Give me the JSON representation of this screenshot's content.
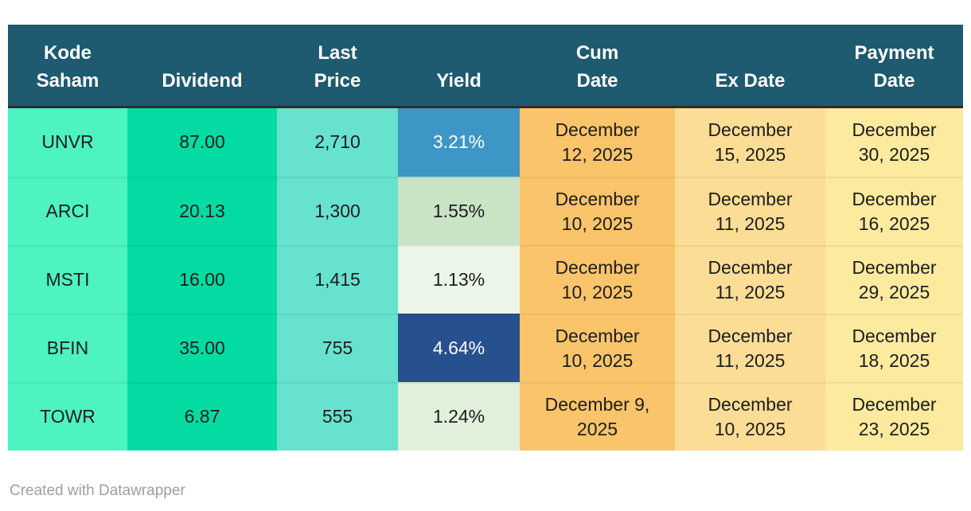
{
  "chart_data": {
    "type": "table",
    "columns": [
      {
        "key": "kode",
        "label": "Kode\nSaham"
      },
      {
        "key": "dividend",
        "label": "Dividend"
      },
      {
        "key": "last_price",
        "label": "Last\nPrice"
      },
      {
        "key": "yield",
        "label": "Yield"
      },
      {
        "key": "cum_date",
        "label": "Cum\nDate"
      },
      {
        "key": "ex_date",
        "label": "Ex Date"
      },
      {
        "key": "payment_date",
        "label": "Payment\nDate"
      }
    ],
    "rows": [
      {
        "kode": "UNVR",
        "dividend": "87.00",
        "last_price": "2,710",
        "yield": "3.21%",
        "cum_date": "December 12, 2025",
        "ex_date": "December 15, 2025",
        "payment_date": "December 30, 2025"
      },
      {
        "kode": "ARCI",
        "dividend": "20.13",
        "last_price": "1,300",
        "yield": "1.55%",
        "cum_date": "December 10, 2025",
        "ex_date": "December 11, 2025",
        "payment_date": "December 16, 2025"
      },
      {
        "kode": "MSTI",
        "dividend": "16.00",
        "last_price": "1,415",
        "yield": "1.13%",
        "cum_date": "December 10, 2025",
        "ex_date": "December 11, 2025",
        "payment_date": "December 29, 2025"
      },
      {
        "kode": "BFIN",
        "dividend": "35.00",
        "last_price": "755",
        "yield": "4.64%",
        "cum_date": "December 10, 2025",
        "ex_date": "December 11, 2025",
        "payment_date": "December 18, 2025"
      },
      {
        "kode": "TOWR",
        "dividend": "6.87",
        "last_price": "555",
        "yield": "1.24%",
        "cum_date": "December 9, 2025",
        "ex_date": "December 10, 2025",
        "payment_date": "December 23, 2025"
      }
    ],
    "yield_cell_styles": [
      {
        "bg": "#3e96c6",
        "fg": "#ffffff"
      },
      {
        "bg": "#c8e4c5",
        "fg": "#1d1d1d"
      },
      {
        "bg": "#ecf6e8",
        "fg": "#1d1d1d"
      },
      {
        "bg": "#27508f",
        "fg": "#ffffff"
      },
      {
        "bg": "#e1f0da",
        "fg": "#1d1d1d"
      }
    ]
  },
  "colors": {
    "header_bg": "#1e5a70",
    "header_fg": "#ffffff",
    "body_fg": "#1d1d1d",
    "col_kode_bg": "#4df3c1",
    "col_dividend_bg": "#04dba3",
    "col_last_price_bg": "#66e2cf",
    "col_cum_date_bg": "#fac46b",
    "col_ex_date_bg": "#fcdd96",
    "col_payment_date_bg": "#fcea9f"
  },
  "footer": {
    "credit": "Created with Datawrapper"
  }
}
